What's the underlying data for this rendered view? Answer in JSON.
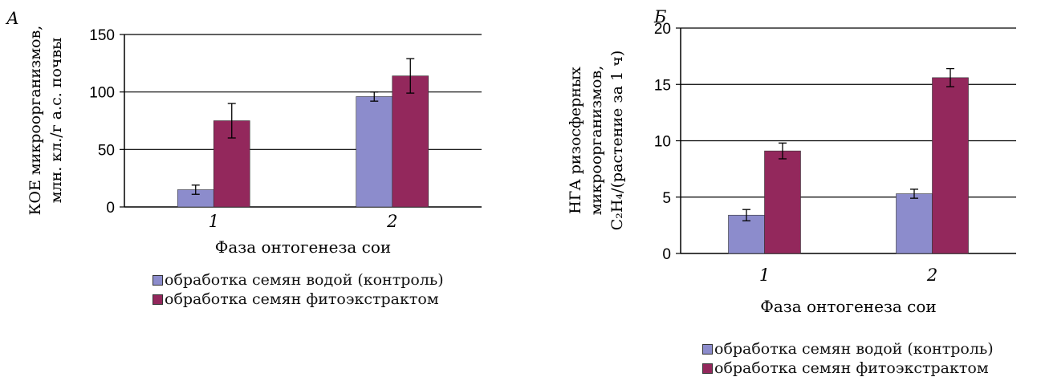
{
  "chart_data": [
    {
      "type": "bar",
      "panel_letter": "А",
      "xlabel": "Фаза онтогенеза сои",
      "ylabel_lines": [
        "КОЕ микроорганизмов,",
        "млн. кл./г а.с. почвы"
      ],
      "categories": [
        "1",
        "2"
      ],
      "ylim": [
        0,
        150
      ],
      "yticks": [
        0,
        50,
        100,
        150
      ],
      "grid": true,
      "series": [
        {
          "name": "обработка семян водой (контроль)",
          "color": "#8c8ccc",
          "values": [
            15,
            96
          ],
          "errors": [
            4,
            4
          ]
        },
        {
          "name": "обработка семян фитоэкстрактом",
          "color": "#93285c",
          "values": [
            75,
            114
          ],
          "errors": [
            15,
            15
          ]
        }
      ]
    },
    {
      "type": "bar",
      "panel_letter": "Б",
      "xlabel": "Фаза онтогенеза сои",
      "ylabel_lines": [
        "НГА ризосферных",
        "микроорганизмов,",
        "C₂H₄/(растение за 1 ч)"
      ],
      "categories": [
        "1",
        "2"
      ],
      "ylim": [
        0,
        20
      ],
      "yticks": [
        0,
        5,
        10,
        15,
        20
      ],
      "grid": true,
      "series": [
        {
          "name": "обработка семян водой (контроль)",
          "color": "#8c8ccc",
          "values": [
            3.4,
            5.3
          ],
          "errors": [
            0.5,
            0.4
          ]
        },
        {
          "name": "обработка семян фитоэкстрактом",
          "color": "#93285c",
          "values": [
            9.1,
            15.6
          ],
          "errors": [
            0.7,
            0.8
          ]
        }
      ]
    }
  ]
}
